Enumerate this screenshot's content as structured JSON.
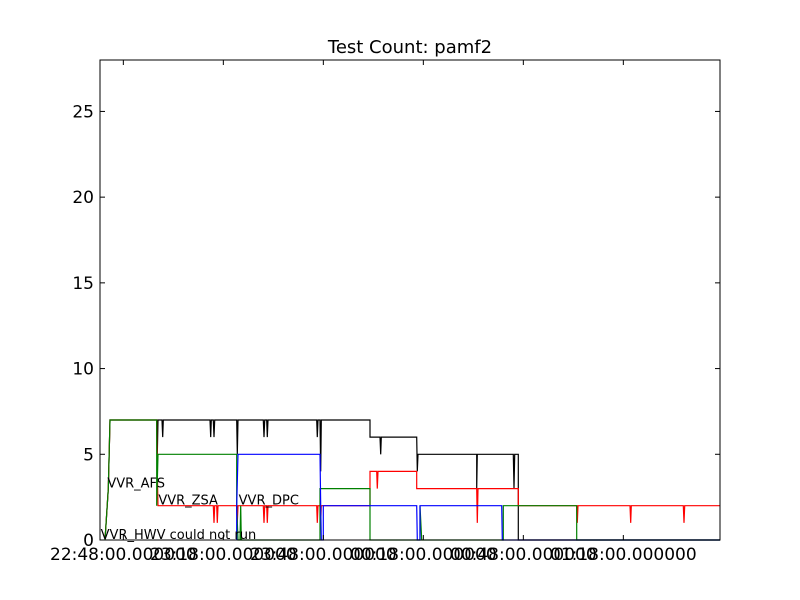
{
  "chart_data": {
    "type": "line",
    "title": "Test Count: pamf2",
    "xlabel": "",
    "ylabel": "",
    "x_unit": "minutes after 22:41:00",
    "xlim": [
      0,
      186
    ],
    "ylim": [
      0,
      28
    ],
    "yticks": [
      0,
      5,
      10,
      15,
      20,
      25
    ],
    "xticks": [
      {
        "x": 7,
        "label": "22:48:00.000000"
      },
      {
        "x": 37,
        "label": "23:18:00.000000"
      },
      {
        "x": 67,
        "label": "23:48:00.000000"
      },
      {
        "x": 97,
        "label": "00:18:00.000000"
      },
      {
        "x": 127,
        "label": "00:48:00.000000"
      },
      {
        "x": 157,
        "label": "01:18:00.000000"
      }
    ],
    "colors": {
      "black": "#000000",
      "red": "#ff0000",
      "green": "#008000",
      "blue": "#0000ff"
    },
    "annotations": [
      {
        "text": "VVR_AFS",
        "x": 2.2,
        "y": 3
      },
      {
        "text": "VVR_ZSA",
        "x": 17.5,
        "y": 2
      },
      {
        "text": "VVR_DPC",
        "x": 41.6,
        "y": 2
      },
      {
        "text": "VVR_HWV could not run",
        "x": 0.2,
        "y": 0
      }
    ],
    "series": [
      {
        "name": "black",
        "color": "#000000",
        "points": [
          [
            1.5,
            0
          ],
          [
            2.5,
            3
          ],
          [
            3,
            7
          ],
          [
            17,
            7
          ],
          [
            17.2,
            5
          ],
          [
            17.4,
            7
          ],
          [
            18.6,
            7
          ],
          [
            18.8,
            6
          ],
          [
            19,
            7
          ],
          [
            33,
            7
          ],
          [
            33.2,
            6
          ],
          [
            33.4,
            7
          ],
          [
            34,
            7
          ],
          [
            34.2,
            6
          ],
          [
            34.4,
            7
          ],
          [
            41,
            7
          ],
          [
            41.2,
            5
          ],
          [
            41.4,
            7
          ],
          [
            49,
            7
          ],
          [
            49.2,
            6
          ],
          [
            49.4,
            7
          ],
          [
            50,
            7
          ],
          [
            50.2,
            6
          ],
          [
            50.4,
            7
          ],
          [
            65,
            7
          ],
          [
            65.2,
            6
          ],
          [
            65.4,
            7
          ],
          [
            66,
            7
          ],
          [
            66.2,
            4
          ],
          [
            66.4,
            7
          ],
          [
            81,
            7
          ],
          [
            81,
            6
          ],
          [
            84,
            6
          ],
          [
            84.2,
            5
          ],
          [
            84.4,
            6
          ],
          [
            95,
            6
          ],
          [
            95.2,
            4
          ],
          [
            95.4,
            5
          ],
          [
            113,
            5
          ],
          [
            113,
            3
          ],
          [
            113.2,
            5
          ],
          [
            124,
            5
          ],
          [
            124.2,
            3
          ],
          [
            124.4,
            5
          ],
          [
            125.5,
            5
          ],
          [
            125.5,
            0
          ],
          [
            186,
            0
          ]
        ]
      },
      {
        "name": "red",
        "color": "#ff0000",
        "points": [
          [
            1.5,
            0
          ],
          [
            2.5,
            3
          ],
          [
            3,
            7
          ],
          [
            17,
            7
          ],
          [
            17.2,
            4
          ],
          [
            17.4,
            2
          ],
          [
            34,
            2
          ],
          [
            34.2,
            1
          ],
          [
            34.4,
            2
          ],
          [
            35,
            2
          ],
          [
            35.2,
            1
          ],
          [
            35.4,
            2
          ],
          [
            41,
            2
          ],
          [
            41.2,
            1
          ],
          [
            41.4,
            2
          ],
          [
            49,
            2
          ],
          [
            49.2,
            1
          ],
          [
            49.4,
            2
          ],
          [
            50,
            2
          ],
          [
            50.2,
            1
          ],
          [
            50.4,
            2
          ],
          [
            65,
            2
          ],
          [
            65.2,
            1
          ],
          [
            65.4,
            2
          ],
          [
            66,
            2
          ],
          [
            66.2,
            1
          ],
          [
            66.4,
            2
          ],
          [
            81,
            2
          ],
          [
            81,
            4
          ],
          [
            83,
            4
          ],
          [
            83.2,
            3
          ],
          [
            83.4,
            4
          ],
          [
            95,
            4
          ],
          [
            95,
            3
          ],
          [
            113,
            3
          ],
          [
            113.2,
            1
          ],
          [
            113.4,
            3
          ],
          [
            125.5,
            3
          ],
          [
            125.5,
            2
          ],
          [
            143,
            2
          ],
          [
            143.2,
            1
          ],
          [
            143.4,
            2
          ],
          [
            159,
            2
          ],
          [
            159.2,
            1
          ],
          [
            159.4,
            2
          ],
          [
            175,
            2
          ],
          [
            175.2,
            1
          ],
          [
            175.4,
            2
          ],
          [
            186,
            2
          ]
        ]
      },
      {
        "name": "green",
        "color": "#008000",
        "points": [
          [
            1.5,
            0
          ],
          [
            2.5,
            3
          ],
          [
            3,
            7
          ],
          [
            17,
            7
          ],
          [
            17,
            2
          ],
          [
            17.4,
            5
          ],
          [
            41,
            5
          ],
          [
            41,
            2
          ],
          [
            41.4,
            0
          ],
          [
            42,
            0
          ],
          [
            42.2,
            2
          ],
          [
            42.4,
            0
          ],
          [
            66,
            0
          ],
          [
            66,
            3
          ],
          [
            81,
            3
          ],
          [
            81,
            0
          ],
          [
            96,
            0
          ],
          [
            96,
            2
          ],
          [
            96.5,
            0
          ],
          [
            121,
            0
          ],
          [
            121,
            2
          ],
          [
            143,
            2
          ],
          [
            143,
            0
          ],
          [
            186,
            0
          ]
        ]
      },
      {
        "name": "blue",
        "color": "#0000ff",
        "points": [
          [
            41,
            0
          ],
          [
            41,
            2
          ],
          [
            41.4,
            5
          ],
          [
            66,
            5
          ],
          [
            66.2,
            2
          ],
          [
            66.4,
            0
          ],
          [
            67,
            0
          ],
          [
            67,
            2
          ],
          [
            95,
            2
          ],
          [
            95.2,
            0
          ],
          [
            96,
            0
          ],
          [
            96,
            2
          ],
          [
            120.5,
            2
          ],
          [
            120.7,
            0
          ],
          [
            186,
            0
          ]
        ]
      }
    ]
  }
}
